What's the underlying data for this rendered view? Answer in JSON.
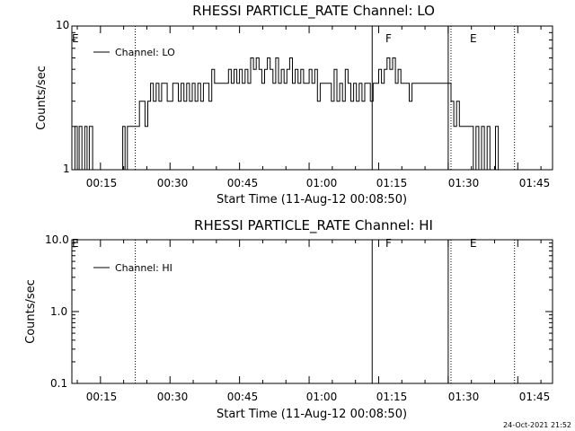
{
  "footer": "24-Oct-2021 21:52",
  "chart_data": [
    {
      "type": "line",
      "title": "RHESSI PARTICLE_RATE Channel: LO",
      "xlabel": "Start Time (11-Aug-12 00:08:50)",
      "ylabel": "Counts/sec",
      "yscale": "log",
      "ylim": [
        1,
        10
      ],
      "y_tick_labels": [
        {
          "v": 1,
          "label": "1"
        },
        {
          "v": 10,
          "label": "10"
        }
      ],
      "xlim_minutes_after_midnight": [
        8.833,
        112.5
      ],
      "x_tick_labels": [
        {
          "t": 15,
          "label": "00:15"
        },
        {
          "t": 30,
          "label": "00:30"
        },
        {
          "t": 45,
          "label": "00:45"
        },
        {
          "t": 60,
          "label": "01:00"
        },
        {
          "t": 75,
          "label": "01:15"
        },
        {
          "t": 90,
          "label": "01:30"
        },
        {
          "t": 105,
          "label": "01:45"
        }
      ],
      "legend": {
        "label": "Channel: LO",
        "placement": "top-left"
      },
      "markers": [
        {
          "t": 22.5,
          "style": "dotted"
        },
        {
          "t": 73.6,
          "style": "solid",
          "label": "F"
        },
        {
          "t": 90.0,
          "style": "solid"
        },
        {
          "t": 90.6,
          "style": "dotted",
          "label": "E"
        },
        {
          "t": 104.3,
          "style": "dotted"
        }
      ],
      "left_marker_label": "E",
      "series": [
        {
          "name": "Channel: LO",
          "x": [
            8.9,
            9.5,
            10.0,
            10.4,
            11.0,
            11.6,
            12.1,
            12.6,
            13.3,
            14.1,
            14.9,
            15.6,
            16.1,
            17.0,
            18.0,
            19.3,
            19.8,
            20.3,
            20.8,
            21.3,
            21.8,
            22.3,
            22.8,
            23.4,
            24.0,
            24.6,
            25.2,
            25.8,
            26.4,
            27.0,
            27.6,
            28.2,
            28.8,
            29.4,
            30.0,
            30.6,
            31.2,
            31.8,
            32.4,
            33.0,
            33.6,
            34.2,
            34.8,
            35.4,
            36.0,
            36.6,
            37.2,
            37.8,
            38.4,
            39.0,
            39.6,
            40.2,
            40.8,
            41.4,
            42.0,
            42.6,
            43.2,
            43.8,
            44.4,
            45.0,
            45.6,
            46.2,
            46.8,
            47.4,
            48.0,
            48.6,
            49.2,
            49.8,
            50.4,
            51.0,
            51.6,
            52.2,
            52.8,
            53.4,
            54.0,
            54.6,
            55.2,
            55.8,
            56.4,
            57.0,
            57.6,
            58.2,
            58.8,
            59.4,
            60.0,
            60.6,
            61.2,
            61.8,
            62.4,
            63.0,
            63.6,
            64.2,
            64.8,
            65.4,
            66.0,
            66.6,
            67.2,
            67.8,
            68.4,
            69.0,
            69.6,
            70.2,
            70.8,
            71.4,
            72.0,
            72.6,
            73.2,
            73.8,
            74.4,
            75.0,
            75.6,
            76.2,
            76.8,
            77.4,
            78.0,
            78.6,
            79.2,
            79.8,
            80.4,
            81.0,
            81.6,
            82.2,
            82.8,
            83.4,
            84.0,
            84.6,
            85.2,
            85.8,
            86.4,
            87.0,
            87.6,
            88.2,
            88.8,
            89.4,
            90.0,
            90.6,
            91.2,
            91.8,
            92.4,
            93.0,
            93.6,
            94.2,
            94.8,
            95.4,
            96.0,
            96.6,
            97.2,
            97.8,
            98.4,
            99.0,
            99.6,
            100.2,
            100.8,
            101.4,
            102.0,
            102.6,
            103.2,
            103.8
          ],
          "y": [
            1,
            2,
            1,
            2,
            1,
            2,
            1,
            2,
            1,
            1,
            1,
            1,
            1,
            1,
            1,
            1,
            2,
            1,
            2,
            2,
            2,
            2,
            2,
            3,
            3,
            2,
            3,
            4,
            3,
            4,
            3,
            4,
            4,
            3,
            3,
            4,
            4,
            3,
            4,
            3,
            4,
            3,
            4,
            3,
            4,
            3,
            4,
            4,
            3,
            5,
            4,
            4,
            4,
            4,
            4,
            5,
            4,
            5,
            4,
            5,
            4,
            5,
            4,
            6,
            5,
            6,
            5,
            4,
            5,
            6,
            5,
            4,
            6,
            4,
            5,
            4,
            5,
            6,
            4,
            5,
            4,
            5,
            4,
            4,
            5,
            4,
            5,
            3,
            4,
            4,
            4,
            4,
            3,
            5,
            3,
            4,
            3,
            5,
            4,
            3,
            4,
            3,
            4,
            3,
            4,
            4,
            3,
            4,
            4,
            5,
            4,
            5,
            6,
            5,
            6,
            4,
            5,
            4,
            4,
            4,
            3,
            4,
            4,
            4,
            4,
            4,
            4,
            4,
            4,
            4,
            4,
            4,
            4,
            4,
            4,
            3,
            2,
            3,
            2,
            2,
            2,
            2,
            2,
            1,
            2,
            1,
            2,
            1,
            2,
            1,
            1,
            2,
            1,
            1,
            1,
            1,
            1,
            1
          ],
          "color": "#000000"
        }
      ]
    },
    {
      "type": "line",
      "title": "RHESSI PARTICLE_RATE Channel: HI",
      "xlabel": "Start Time (11-Aug-12 00:08:50)",
      "ylabel": "Counts/sec",
      "yscale": "log",
      "ylim": [
        0.1,
        10
      ],
      "y_tick_labels": [
        {
          "v": 0.1,
          "label": "0.1"
        },
        {
          "v": 1,
          "label": "1.0"
        },
        {
          "v": 10,
          "label": "10.0"
        }
      ],
      "xlim_minutes_after_midnight": [
        8.833,
        112.5
      ],
      "x_tick_labels": [
        {
          "t": 15,
          "label": "00:15"
        },
        {
          "t": 30,
          "label": "00:30"
        },
        {
          "t": 45,
          "label": "00:45"
        },
        {
          "t": 60,
          "label": "01:00"
        },
        {
          "t": 75,
          "label": "01:15"
        },
        {
          "t": 90,
          "label": "01:30"
        },
        {
          "t": 105,
          "label": "01:45"
        }
      ],
      "legend": {
        "label": "Channel: HI",
        "placement": "top-left"
      },
      "markers": [
        {
          "t": 22.5,
          "style": "dotted"
        },
        {
          "t": 73.6,
          "style": "solid",
          "label": "F"
        },
        {
          "t": 90.0,
          "style": "solid"
        },
        {
          "t": 90.6,
          "style": "dotted",
          "label": "E"
        },
        {
          "t": 104.3,
          "style": "dotted"
        }
      ],
      "left_marker_label": "E",
      "series": [
        {
          "name": "Channel: HI",
          "x": [],
          "y": [],
          "color": "#000000"
        }
      ]
    }
  ]
}
